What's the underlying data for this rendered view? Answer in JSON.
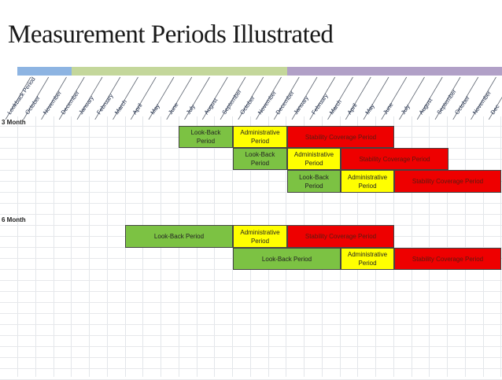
{
  "title": "Measurement Periods Illustrated",
  "colors": {
    "lookback": "#7cc243",
    "administrative": "#ffff00",
    "stability": "#ee0000",
    "band_blue": "#8db4e2",
    "band_green": "#c4d79b",
    "band_purple": "#b1a0c7"
  },
  "timeline": {
    "months": [
      "Lookback Period",
      "October",
      "November",
      "December",
      "January",
      "February",
      "March",
      "April",
      "May",
      "June",
      "July",
      "August",
      "September",
      "October",
      "November",
      "December",
      "January",
      "February",
      "March",
      "April",
      "May",
      "June",
      "July",
      "August",
      "September",
      "October",
      "November",
      "Dec"
    ]
  },
  "sections": [
    {
      "label": "3 Month",
      "rows": [
        {
          "blocks": [
            {
              "type": "lookback",
              "text": [
                "Look-Back",
                "Period"
              ]
            },
            {
              "type": "administrative",
              "text": [
                "Administrative",
                "Period"
              ]
            },
            {
              "type": "stability",
              "text": [
                "Stability Coverage Period"
              ]
            }
          ]
        },
        {
          "blocks": [
            {
              "type": "lookback",
              "text": [
                "Look-Back",
                "Period"
              ]
            },
            {
              "type": "administrative",
              "text": [
                "Administrative",
                "Period"
              ]
            },
            {
              "type": "stability",
              "text": [
                "Stability Coverage Period"
              ]
            }
          ]
        },
        {
          "blocks": [
            {
              "type": "lookback",
              "text": [
                "Look-Back",
                "Period"
              ]
            },
            {
              "type": "administrative",
              "text": [
                "Administrative",
                "Period"
              ]
            },
            {
              "type": "stability",
              "text": [
                "Stability Coverage Period"
              ]
            }
          ]
        }
      ]
    },
    {
      "label": "6 Month",
      "rows": [
        {
          "blocks": [
            {
              "type": "lookback",
              "text": [
                "Look-Back Period"
              ]
            },
            {
              "type": "administrative",
              "text": [
                "Administrative",
                "Period"
              ]
            },
            {
              "type": "stability",
              "text": [
                "Stability Coverage Period"
              ]
            }
          ]
        },
        {
          "blocks": [
            {
              "type": "lookback",
              "text": [
                "Look-Back Period"
              ]
            },
            {
              "type": "administrative",
              "text": [
                "Administrative",
                "Period"
              ]
            },
            {
              "type": "stability",
              "text": [
                "Stability Coverage Period"
              ]
            }
          ]
        }
      ]
    }
  ]
}
